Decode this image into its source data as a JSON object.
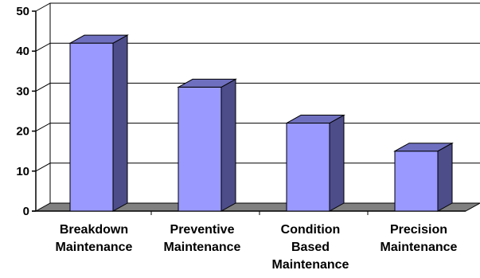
{
  "chart_data": {
    "type": "bar",
    "categories": [
      [
        "Breakdown",
        "Maintenance"
      ],
      [
        "Preventive",
        "Maintenance"
      ],
      [
        "Condition",
        "Based",
        "Maintenance"
      ],
      [
        "Precision",
        "Maintenance"
      ]
    ],
    "values": [
      42,
      31,
      22,
      15
    ],
    "ylim": [
      0,
      50
    ],
    "yticks": [
      0,
      10,
      20,
      30,
      40,
      50
    ],
    "grid": true,
    "bar_3d": true,
    "colors": {
      "bar_front": "#9999ff",
      "bar_side": "#4d4d8a",
      "bar_top": "#6f6fbf",
      "floor": "#808080",
      "grid": "#000000"
    }
  }
}
